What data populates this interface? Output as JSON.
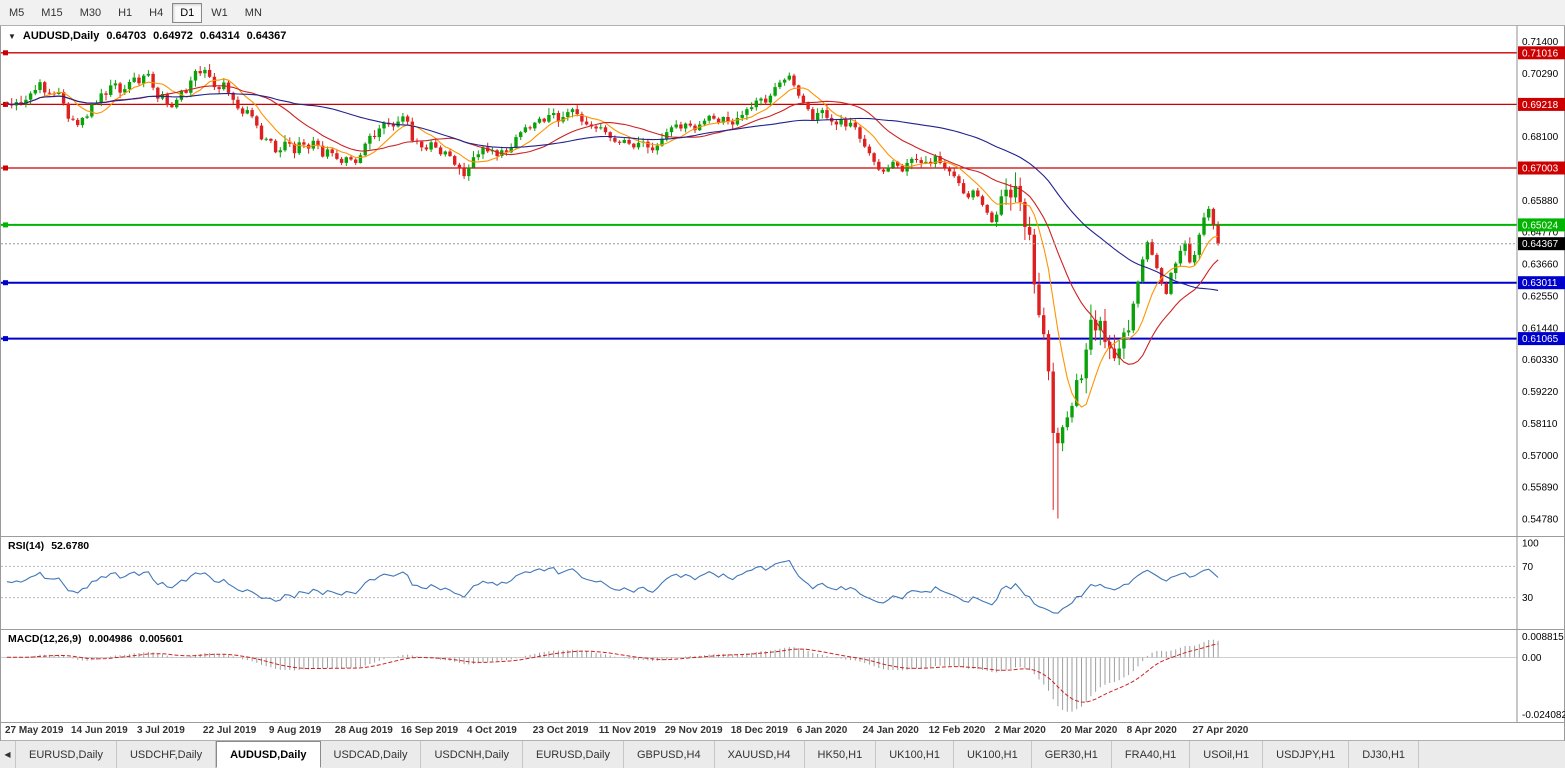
{
  "toolbar": {
    "timeframes": [
      {
        "label": "M5",
        "active": false
      },
      {
        "label": "M15",
        "active": false
      },
      {
        "label": "M30",
        "active": false
      },
      {
        "label": "H1",
        "active": false
      },
      {
        "label": "H4",
        "active": false
      },
      {
        "label": "D1",
        "active": true
      },
      {
        "label": "W1",
        "active": false
      },
      {
        "label": "MN",
        "active": false
      }
    ]
  },
  "chart": {
    "title": "AUDUSD,Daily",
    "open": "0.64703",
    "high": "0.64972",
    "low": "0.64314",
    "close": "0.64367"
  },
  "rsi": {
    "name": "RSI(14)",
    "value": "52.6780"
  },
  "macd": {
    "name": "MACD(12,26,9)",
    "value": "0.004986",
    "signal_value": "0.005601"
  },
  "tabbar": {
    "tabs": [
      {
        "label": "EURUSD,Daily",
        "active": false
      },
      {
        "label": "USDCHF,Daily",
        "active": false
      },
      {
        "label": "AUDUSD,Daily",
        "active": true
      },
      {
        "label": "USDCAD,Daily",
        "active": false
      },
      {
        "label": "USDCNH,Daily",
        "active": false
      },
      {
        "label": "EURUSD,Daily",
        "active": false
      },
      {
        "label": "GBPUSD,H4",
        "active": false
      },
      {
        "label": "XAUUSD,H4",
        "active": false
      },
      {
        "label": "HK50,H1",
        "active": false
      },
      {
        "label": "UK100,H1",
        "active": false
      },
      {
        "label": "UK100,H1",
        "active": false
      },
      {
        "label": "GER30,H1",
        "active": false
      },
      {
        "label": "FRA40,H1",
        "active": false
      },
      {
        "label": "USOil,H1",
        "active": false
      },
      {
        "label": "USDJPY,H1",
        "active": false
      },
      {
        "label": "DJ30,H1",
        "active": false
      }
    ]
  },
  "chart_data": {
    "type": "candlestick",
    "symbol": "AUDUSD",
    "timeframe": "Daily",
    "total_slots": 320,
    "x_labels": [
      {
        "i": 0,
        "label": "27 May 2019"
      },
      {
        "i": 14,
        "label": "14 Jun 2019"
      },
      {
        "i": 28,
        "label": "3 Jul 2019"
      },
      {
        "i": 42,
        "label": "22 Jul 2019"
      },
      {
        "i": 56,
        "label": "9 Aug 2019"
      },
      {
        "i": 70,
        "label": "28 Aug 2019"
      },
      {
        "i": 84,
        "label": "16 Sep 2019"
      },
      {
        "i": 98,
        "label": "4 Oct 2019"
      },
      {
        "i": 112,
        "label": "23 Oct 2019"
      },
      {
        "i": 126,
        "label": "11 Nov 2019"
      },
      {
        "i": 140,
        "label": "29 Nov 2019"
      },
      {
        "i": 154,
        "label": "18 Dec 2019"
      },
      {
        "i": 168,
        "label": "6 Jan 2020"
      },
      {
        "i": 182,
        "label": "24 Jan 2020"
      },
      {
        "i": 196,
        "label": "12 Feb 2020"
      },
      {
        "i": 210,
        "label": "2 Mar 2020"
      },
      {
        "i": 224,
        "label": "20 Mar 2020"
      },
      {
        "i": 238,
        "label": "8 Apr 2020"
      },
      {
        "i": 252,
        "label": "27 Apr 2020"
      }
    ],
    "price": {
      "ylim": [
        0.544,
        0.716
      ],
      "first_open": 0.693,
      "closes": [
        0.6925,
        0.6918,
        0.693,
        0.6922,
        0.6938,
        0.696,
        0.6972,
        0.6999,
        0.6963,
        0.696,
        0.6958,
        0.6965,
        0.6925,
        0.6872,
        0.6868,
        0.685,
        0.6875,
        0.688,
        0.6922,
        0.6928,
        0.696,
        0.6955,
        0.6988,
        0.6995,
        0.6963,
        0.6975,
        0.7,
        0.7015,
        0.6995,
        0.7022,
        0.7028,
        0.698,
        0.6942,
        0.6958,
        0.692,
        0.6912,
        0.6938,
        0.697,
        0.6962,
        0.7005,
        0.7038,
        0.703,
        0.7042,
        0.7018,
        0.6982,
        0.6975,
        0.6998,
        0.6962,
        0.6938,
        0.6908,
        0.689,
        0.6902,
        0.688,
        0.6848,
        0.68,
        0.6802,
        0.6795,
        0.6755,
        0.6762,
        0.6792,
        0.6785,
        0.6752,
        0.679,
        0.6782,
        0.6768,
        0.6795,
        0.6778,
        0.674,
        0.6765,
        0.6752,
        0.6732,
        0.6718,
        0.6738,
        0.673,
        0.6718,
        0.6745,
        0.6785,
        0.6812,
        0.6808,
        0.6838,
        0.6858,
        0.6852,
        0.6845,
        0.6862,
        0.688,
        0.6862,
        0.6795,
        0.6792,
        0.6772,
        0.6765,
        0.679,
        0.6772,
        0.6748,
        0.6758,
        0.6742,
        0.6712,
        0.67,
        0.6672,
        0.6702,
        0.6738,
        0.6748,
        0.6772,
        0.6758,
        0.6762,
        0.6742,
        0.6762,
        0.6755,
        0.6772,
        0.6808,
        0.6825,
        0.6842,
        0.6838,
        0.6858,
        0.6872,
        0.6862,
        0.6885,
        0.6892,
        0.6862,
        0.6878,
        0.6895,
        0.6905,
        0.6888,
        0.6862,
        0.6852,
        0.6845,
        0.6838,
        0.6842,
        0.6825,
        0.6805,
        0.6792,
        0.6788,
        0.6798,
        0.6785,
        0.6772,
        0.6788,
        0.6792,
        0.6772,
        0.6762,
        0.6778,
        0.6802,
        0.6825,
        0.6842,
        0.6852,
        0.6838,
        0.6855,
        0.6848,
        0.6832,
        0.6852,
        0.6865,
        0.6882,
        0.6872,
        0.6858,
        0.6878,
        0.6862,
        0.6852,
        0.6875,
        0.6885,
        0.6905,
        0.6912,
        0.6935,
        0.6942,
        0.6928,
        0.6952,
        0.6982,
        0.6998,
        0.7008,
        0.7022,
        0.6988,
        0.6952,
        0.6928,
        0.6905,
        0.6868,
        0.6892,
        0.6902,
        0.6875,
        0.6862,
        0.6852,
        0.687,
        0.6845,
        0.6858,
        0.6842,
        0.6802,
        0.6775,
        0.6752,
        0.6722,
        0.6695,
        0.6688,
        0.6702,
        0.6722,
        0.6708,
        0.6688,
        0.6718,
        0.6732,
        0.6728,
        0.6718,
        0.6722,
        0.6715,
        0.6742,
        0.6718,
        0.6702,
        0.6688,
        0.6672,
        0.6648,
        0.6612,
        0.6598,
        0.6622,
        0.6602,
        0.6572,
        0.6545,
        0.6512,
        0.6538,
        0.6602,
        0.6625,
        0.6598,
        0.6638,
        0.6582,
        0.6495,
        0.6468,
        0.6295,
        0.6188,
        0.6122,
        0.5992,
        0.5778,
        0.5742,
        0.5798,
        0.5832,
        0.5872,
        0.5962,
        0.5968,
        0.6068,
        0.6172,
        0.6135,
        0.6168,
        0.6095,
        0.6072,
        0.6038,
        0.6072,
        0.6128,
        0.6135,
        0.6228,
        0.6305,
        0.6382,
        0.6442,
        0.6398,
        0.6352,
        0.6298,
        0.6262,
        0.6335,
        0.6368,
        0.6412,
        0.6438,
        0.6372,
        0.6398,
        0.6468,
        0.6528,
        0.6558,
        0.6502,
        0.6437
      ],
      "low_overrides": {
        "218": 0.6265,
        "222": 0.551,
        "223": 0.548
      },
      "y_ticks": [
        "0.71400",
        "0.70290",
        "0.68100",
        "0.65880",
        "0.64770",
        "0.63660",
        "0.62550",
        "0.61440",
        "0.60330",
        "0.59220",
        "0.58110",
        "0.57000",
        "0.55890",
        "0.54780"
      ],
      "hlines": [
        {
          "price": 0.71016,
          "label": "0.71016",
          "color": "#cc0000",
          "width": 1.3
        },
        {
          "price": 0.69218,
          "label": "0.69218",
          "color": "#cc0000",
          "width": 1.3
        },
        {
          "price": 0.67003,
          "label": "0.67003",
          "color": "#cc0000",
          "width": 1.3
        },
        {
          "price": 0.65024,
          "label": "0.65024",
          "color": "#00b400",
          "width": 2
        },
        {
          "price": 0.63011,
          "label": "0.63011",
          "color": "#0000cc",
          "width": 2
        },
        {
          "price": 0.61065,
          "label": "0.61065",
          "color": "#0000cc",
          "width": 2
        }
      ],
      "current_price": {
        "value": 0.64367,
        "label": "0.64367",
        "box_color": "#000000",
        "line_color": "#9a9a9a"
      },
      "ma": [
        {
          "period": 8,
          "color": "#ff9400"
        },
        {
          "period": 20,
          "color": "#cc2222"
        },
        {
          "period": 50,
          "color": "#22228e"
        }
      ],
      "up_color": "#0aa10a",
      "down_color": "#dd2020"
    },
    "rsi": {
      "period": 14,
      "levels": [
        70,
        30
      ],
      "scale_labels": [
        "100",
        "70",
        "30"
      ],
      "color": "#3f76b9",
      "ylim": [
        0,
        100
      ]
    },
    "macd": {
      "fast": 12,
      "slow": 26,
      "signal": 9,
      "hist_color": "#9e9e9e",
      "signal_color": "#cc2222",
      "axis_labels": [
        {
          "value": 0.008815,
          "label": "0.008815"
        },
        {
          "value": 0.0,
          "label": "0.00"
        },
        {
          "value": -0.024082,
          "label": "-0.024082"
        }
      ]
    }
  }
}
